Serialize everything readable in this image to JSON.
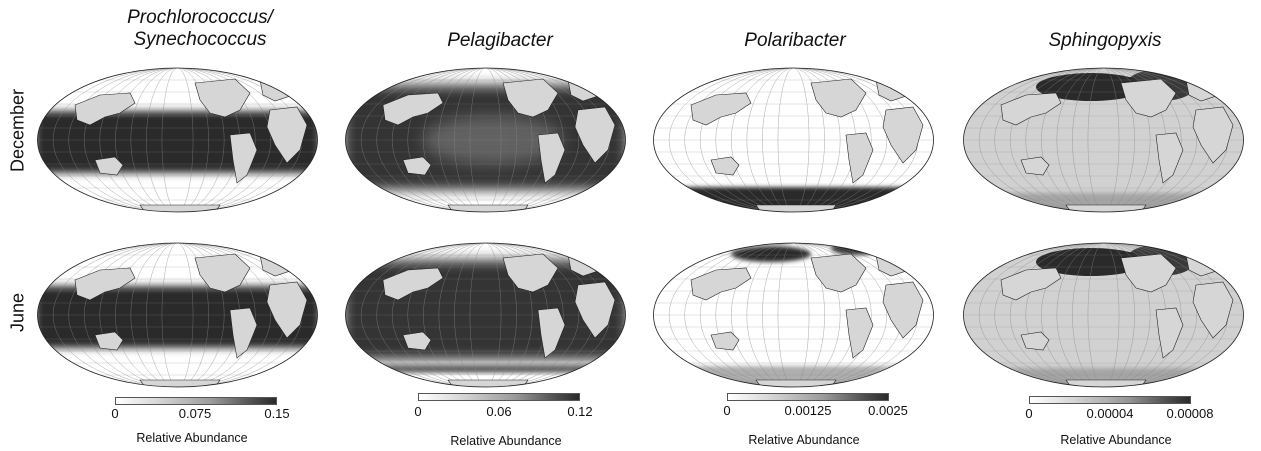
{
  "columns": [
    {
      "title_line1": "Prochlorococcus/",
      "title_line2": "Synechococcus",
      "ticks": [
        "0",
        "0.075",
        "0.15"
      ],
      "color_label": "Relative Abundance"
    },
    {
      "title_line1": "Pelagibacter",
      "title_line2": "",
      "ticks": [
        "0",
        "0.06",
        "0.12"
      ],
      "color_label": "Relative Abundance"
    },
    {
      "title_line1": "Polaribacter",
      "title_line2": "",
      "ticks": [
        "0",
        "0.00125",
        "0.0025"
      ],
      "color_label": "Relative Abundance"
    },
    {
      "title_line1": "Sphingopyxis",
      "title_line2": "",
      "ticks": [
        "0",
        "0.00004",
        "0.00008"
      ],
      "color_label": "Relative Abundance"
    }
  ],
  "rows": [
    {
      "label": "December"
    },
    {
      "label": "June"
    }
  ],
  "colors": {
    "high": "#2a2a2a",
    "mid": "#9a9a9a",
    "low": "#ffffff",
    "land": "#d6d6d6"
  }
}
